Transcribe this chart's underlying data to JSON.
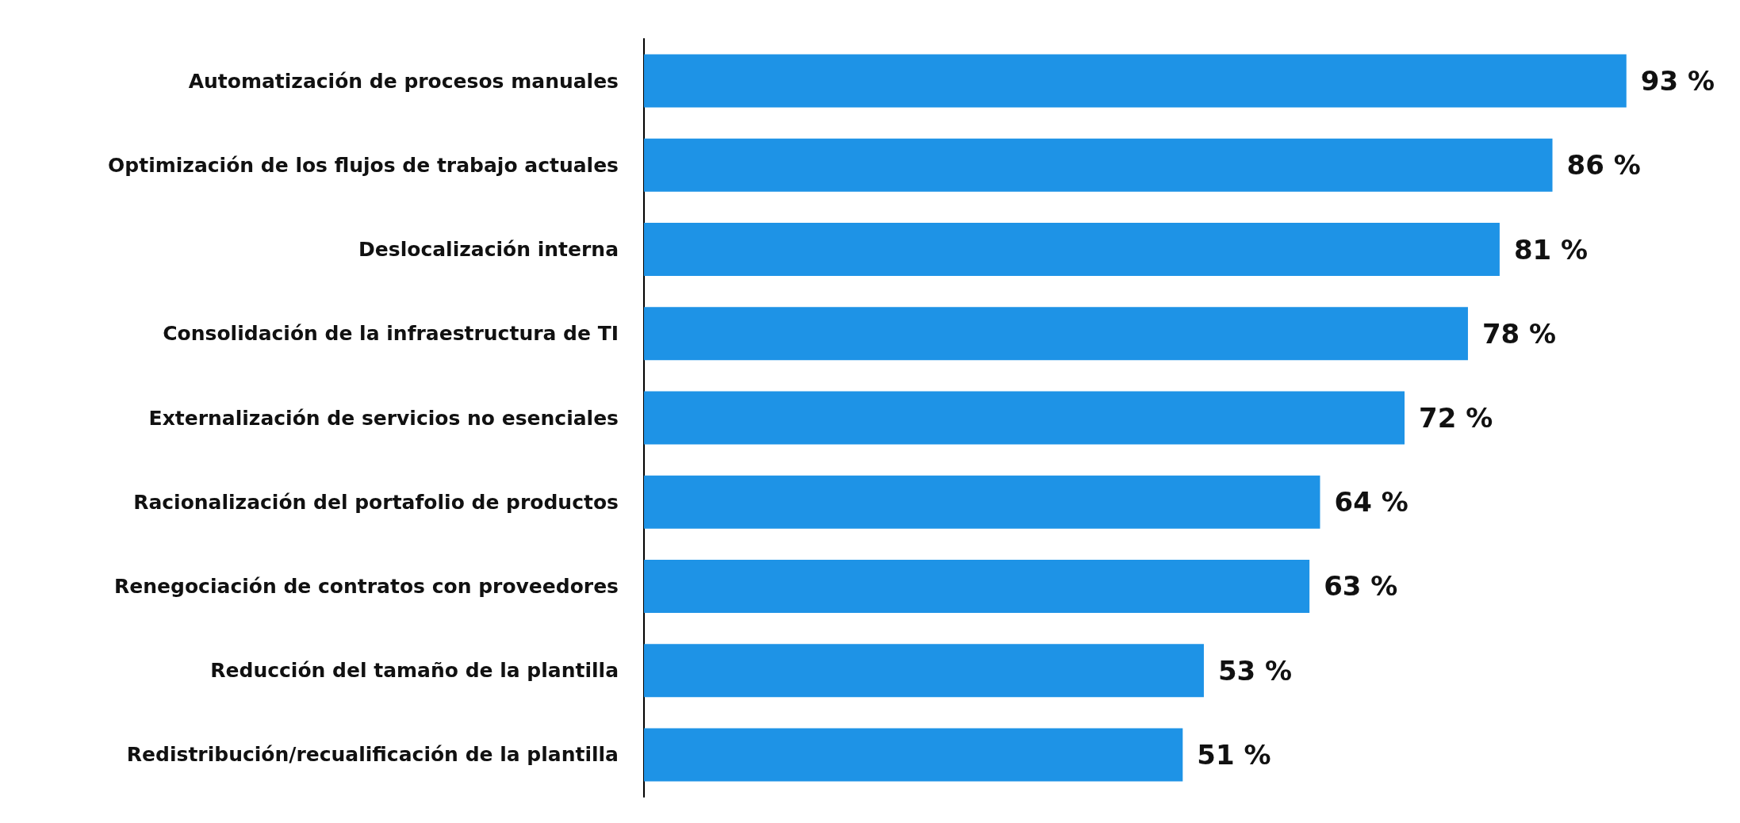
{
  "chart_data": {
    "type": "bar",
    "orientation": "horizontal",
    "categories": [
      "Automatización de procesos manuales",
      "Optimización de los flujos de trabajo actuales",
      "Deslocalización interna",
      "Consolidación de la infraestructura de TI",
      "Externalización de servicios no esenciales",
      "Racionalización del portafolio de productos",
      "Renegociación de contratos con proveedores",
      "Reducción del tamaño de la plantilla",
      "Redistribución/recualificación de la plantilla"
    ],
    "values": [
      93,
      86,
      81,
      78,
      72,
      64,
      63,
      53,
      51
    ],
    "value_labels": [
      "93 %",
      "86 %",
      "81 %",
      "78 %",
      "72 %",
      "64 %",
      "63 %",
      "53 %",
      "51 %"
    ],
    "color": "#1e93e6",
    "tick_labels": "y"
  }
}
